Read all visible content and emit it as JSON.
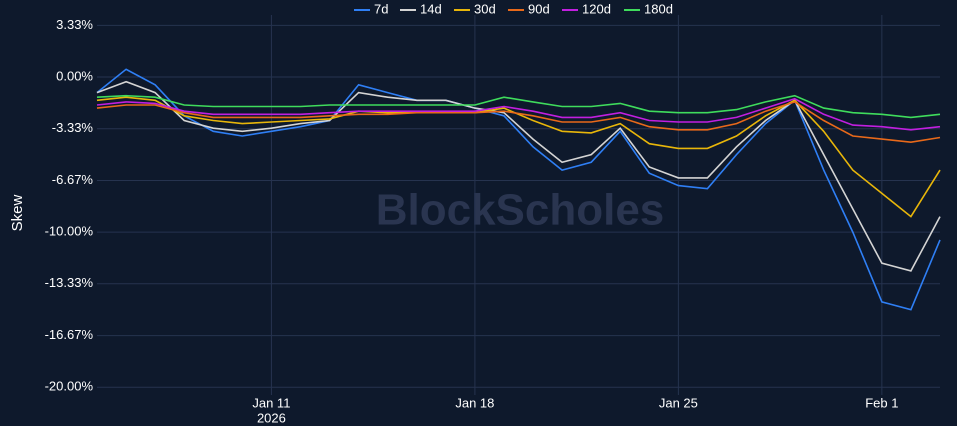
{
  "chart_data": {
    "type": "line",
    "y_label": "Skew",
    "watermark": "BlockScholes",
    "x": [
      "2026-01-05",
      "2026-01-06",
      "2026-01-07",
      "2026-01-08",
      "2026-01-09",
      "2026-01-10",
      "2026-01-11",
      "2026-01-12",
      "2026-01-13",
      "2026-01-14",
      "2026-01-15",
      "2026-01-16",
      "2026-01-17",
      "2026-01-18",
      "2026-01-19",
      "2026-01-20",
      "2026-01-21",
      "2026-01-22",
      "2026-01-23",
      "2026-01-24",
      "2026-01-25",
      "2026-01-26",
      "2026-01-27",
      "2026-01-28",
      "2026-01-29",
      "2026-01-30",
      "2026-01-31",
      "2026-02-01",
      "2026-02-02",
      "2026-02-03"
    ],
    "xlim": [
      "2026-01-05",
      "2026-02-03"
    ],
    "xticks": [
      {
        "value": "2026-01-11",
        "label": "Jan 11"
      },
      {
        "value": "2026-01-18",
        "label": "Jan 18"
      },
      {
        "value": "2026-01-25",
        "label": "Jan 25"
      },
      {
        "value": "2026-02-01",
        "label": "Feb 1"
      }
    ],
    "xtick_year": "2026",
    "ylim": [
      -20.5,
      4
    ],
    "yticks": [
      {
        "value": 3.33,
        "label": "3.33%"
      },
      {
        "value": 0,
        "label": "0.00%"
      },
      {
        "value": -3.33,
        "label": "-3.33%"
      },
      {
        "value": -6.67,
        "label": "-6.67%"
      },
      {
        "value": -10,
        "label": "-10.00%"
      },
      {
        "value": -13.33,
        "label": "-13.33%"
      },
      {
        "value": -16.67,
        "label": "-16.67%"
      },
      {
        "value": -20,
        "label": "-20.00%"
      }
    ],
    "grid": true,
    "legend": "top",
    "series": [
      {
        "name": "7d",
        "color": "#2f7ff5",
        "values": [
          -1,
          0.5,
          -0.5,
          -2.5,
          -3.5,
          -3.8,
          -3.5,
          -3.2,
          -2.8,
          -0.5,
          -1.0,
          -1.5,
          -1.5,
          -2.0,
          -2.5,
          -4.5,
          -6.0,
          -5.5,
          -3.5,
          -6.2,
          -7.0,
          -7.2,
          -5.0,
          -3.0,
          -1.5,
          -6.0,
          -10.0,
          -14.5,
          -15.0,
          -10.5
        ]
      },
      {
        "name": "14d",
        "color": "#d4d4d4",
        "values": [
          -1,
          -0.3,
          -1,
          -2.8,
          -3.3,
          -3.5,
          -3.3,
          -3.0,
          -2.8,
          -1.0,
          -1.3,
          -1.5,
          -1.5,
          -2.0,
          -2.3,
          -4.0,
          -5.5,
          -5.0,
          -3.3,
          -5.8,
          -6.5,
          -6.5,
          -4.5,
          -2.8,
          -1.5,
          -5.0,
          -8.5,
          -12.0,
          -12.5,
          -9.0
        ]
      },
      {
        "name": "30d",
        "color": "#e8b60a",
        "values": [
          -1.5,
          -1.3,
          -1.5,
          -2.5,
          -2.8,
          -3.0,
          -2.9,
          -2.8,
          -2.7,
          -2.2,
          -2.3,
          -2.3,
          -2.3,
          -2.3,
          -2.0,
          -2.8,
          -3.5,
          -3.6,
          -3.0,
          -4.3,
          -4.6,
          -4.6,
          -3.8,
          -2.5,
          -1.5,
          -3.5,
          -6.0,
          -7.5,
          -9.0,
          -6.0
        ]
      },
      {
        "name": "90d",
        "color": "#e8691a",
        "values": [
          -2.0,
          -1.8,
          -1.8,
          -2.3,
          -2.6,
          -2.6,
          -2.6,
          -2.6,
          -2.5,
          -2.4,
          -2.4,
          -2.3,
          -2.3,
          -2.3,
          -2.2,
          -2.5,
          -2.9,
          -2.9,
          -2.6,
          -3.2,
          -3.4,
          -3.4,
          -3.0,
          -2.2,
          -1.6,
          -2.8,
          -3.8,
          -4.0,
          -4.2,
          -3.9
        ]
      },
      {
        "name": "120d",
        "color": "#c21fe0",
        "values": [
          -1.8,
          -1.6,
          -1.7,
          -2.2,
          -2.4,
          -2.4,
          -2.4,
          -2.4,
          -2.3,
          -2.2,
          -2.2,
          -2.2,
          -2.2,
          -2.2,
          -1.9,
          -2.2,
          -2.6,
          -2.6,
          -2.3,
          -2.8,
          -2.9,
          -2.9,
          -2.6,
          -2.0,
          -1.4,
          -2.4,
          -3.1,
          -3.2,
          -3.4,
          -3.2
        ]
      },
      {
        "name": "180d",
        "color": "#3fdc5c",
        "values": [
          -1.3,
          -1.2,
          -1.3,
          -1.8,
          -1.9,
          -1.9,
          -1.9,
          -1.9,
          -1.8,
          -1.8,
          -1.8,
          -1.8,
          -1.8,
          -1.8,
          -1.3,
          -1.6,
          -1.9,
          -1.9,
          -1.7,
          -2.2,
          -2.3,
          -2.3,
          -2.1,
          -1.6,
          -1.2,
          -2.0,
          -2.3,
          -2.4,
          -2.6,
          -2.4
        ]
      }
    ]
  }
}
